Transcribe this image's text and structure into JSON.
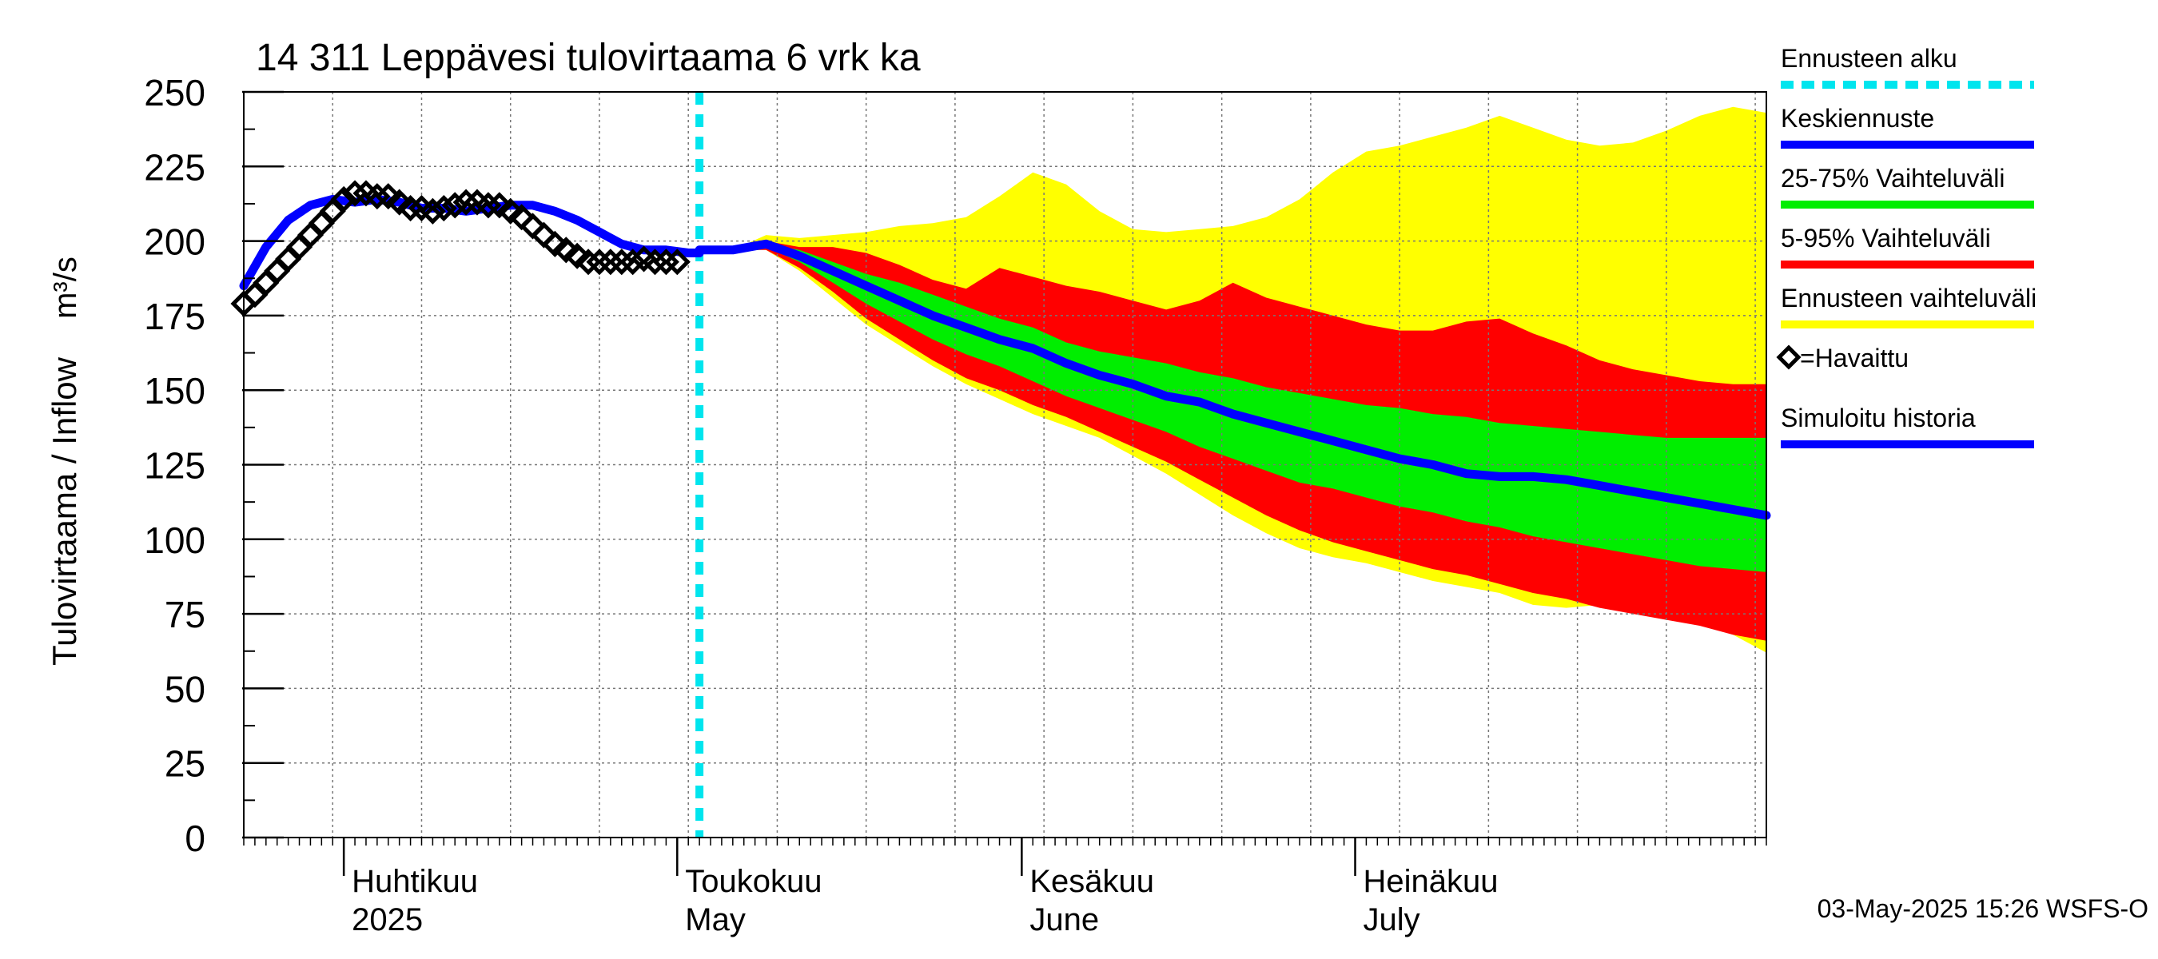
{
  "chart_data": {
    "type": "area",
    "title": "14 311 Leppävesi tulovirtaama 6 vrk ka",
    "ylabel": "Tulovirtaama / Inflow",
    "yunit": "m³/s",
    "ylim": [
      0,
      250
    ],
    "yticks": [
      0,
      25,
      50,
      75,
      100,
      125,
      150,
      175,
      200,
      225,
      250
    ],
    "xlim": [
      "2025-03-23",
      "2025-08-07"
    ],
    "grid": true,
    "legend_placement": "right",
    "month_labels": [
      {
        "date": "2025-04-01",
        "fi": "Huhtikuu",
        "en": "2025"
      },
      {
        "date": "2025-05-01",
        "fi": "Toukokuu",
        "en": "May"
      },
      {
        "date": "2025-06-01",
        "fi": "Kesäkuu",
        "en": "June"
      },
      {
        "date": "2025-07-01",
        "fi": "Heinäkuu",
        "en": "July"
      }
    ],
    "forecast_start": "2025-05-03",
    "legend": [
      {
        "key": "forecast_start",
        "label": "Ennusteen alku",
        "color": "#00e5ee",
        "style": "dashed"
      },
      {
        "key": "median",
        "label": "Keskiennuste",
        "color": "#0000ff",
        "style": "line"
      },
      {
        "key": "p25_75",
        "label": "25-75% Vaihteluväli",
        "color": "#00ee00",
        "style": "line"
      },
      {
        "key": "p5_95",
        "label": "5-95% Vaihteluväli",
        "color": "#ff0000",
        "style": "line"
      },
      {
        "key": "range",
        "label": "Ennusteen vaihteluväli",
        "color": "#ffff00",
        "style": "line"
      },
      {
        "key": "observed",
        "label": "=Havaittu",
        "color": "#000000",
        "style": "marker"
      },
      {
        "key": "simulated",
        "label": "Simuloitu historia",
        "color": "#0000ff",
        "style": "line"
      }
    ],
    "simulated_history": {
      "x": [
        "2025-03-23",
        "2025-03-25",
        "2025-03-27",
        "2025-03-29",
        "2025-03-31",
        "2025-04-02",
        "2025-04-04",
        "2025-04-06",
        "2025-04-08",
        "2025-04-10",
        "2025-04-12",
        "2025-04-14",
        "2025-04-16",
        "2025-04-18",
        "2025-04-20",
        "2025-04-22",
        "2025-04-24",
        "2025-04-26",
        "2025-04-28",
        "2025-04-30",
        "2025-05-02",
        "2025-05-03"
      ],
      "y": [
        185,
        198,
        207,
        212,
        214,
        213,
        214,
        213,
        211,
        211,
        210,
        211,
        212,
        212,
        210,
        207,
        203,
        199,
        197,
        197,
        196,
        196
      ]
    },
    "observed": {
      "x": [
        "2025-03-23",
        "2025-03-24",
        "2025-03-25",
        "2025-03-26",
        "2025-03-27",
        "2025-03-28",
        "2025-03-29",
        "2025-03-30",
        "2025-03-31",
        "2025-04-01",
        "2025-04-02",
        "2025-04-03",
        "2025-04-04",
        "2025-04-05",
        "2025-04-06",
        "2025-04-07",
        "2025-04-08",
        "2025-04-09",
        "2025-04-10",
        "2025-04-11",
        "2025-04-12",
        "2025-04-13",
        "2025-04-14",
        "2025-04-15",
        "2025-04-16",
        "2025-04-17",
        "2025-04-18",
        "2025-04-19",
        "2025-04-20",
        "2025-04-21",
        "2025-04-22",
        "2025-04-23",
        "2025-04-24",
        "2025-04-25",
        "2025-04-26",
        "2025-04-27",
        "2025-04-28",
        "2025-04-29",
        "2025-04-30",
        "2025-05-01"
      ],
      "y": [
        179,
        182,
        186,
        190,
        194,
        198,
        202,
        206,
        210,
        214,
        216,
        216,
        215,
        215,
        213,
        211,
        211,
        210,
        211,
        212,
        213,
        213,
        212,
        212,
        210,
        208,
        205,
        202,
        199,
        197,
        195,
        193,
        193,
        193,
        193,
        193,
        194,
        193,
        193,
        193
      ]
    },
    "forecast": {
      "x": [
        "2025-05-03",
        "2025-05-06",
        "2025-05-09",
        "2025-05-12",
        "2025-05-15",
        "2025-05-18",
        "2025-05-21",
        "2025-05-24",
        "2025-05-27",
        "2025-05-30",
        "2025-06-02",
        "2025-06-05",
        "2025-06-08",
        "2025-06-11",
        "2025-06-14",
        "2025-06-17",
        "2025-06-20",
        "2025-06-23",
        "2025-06-26",
        "2025-06-29",
        "2025-07-02",
        "2025-07-05",
        "2025-07-08",
        "2025-07-11",
        "2025-07-14",
        "2025-07-17",
        "2025-07-20",
        "2025-07-23",
        "2025-07-26",
        "2025-07-29",
        "2025-08-01",
        "2025-08-04",
        "2025-08-07"
      ],
      "median": [
        197,
        197,
        199,
        195,
        190,
        185,
        180,
        175,
        171,
        167,
        164,
        159,
        155,
        152,
        148,
        146,
        142,
        139,
        136,
        133,
        130,
        127,
        125,
        122,
        121,
        121,
        120,
        118,
        116,
        114,
        112,
        110,
        108
      ],
      "p25_low": [
        197,
        197,
        198,
        193,
        186,
        179,
        173,
        167,
        162,
        158,
        153,
        148,
        144,
        140,
        136,
        131,
        127,
        123,
        119,
        117,
        114,
        111,
        109,
        106,
        104,
        101,
        99,
        97,
        95,
        93,
        91,
        90,
        89
      ],
      "p25_high": [
        197,
        197,
        199,
        197,
        193,
        189,
        186,
        182,
        178,
        174,
        171,
        166,
        163,
        161,
        159,
        156,
        154,
        151,
        149,
        147,
        145,
        144,
        142,
        141,
        139,
        138,
        137,
        136,
        135,
        134,
        134,
        134,
        134
      ],
      "p5_low": [
        197,
        197,
        197,
        191,
        183,
        174,
        167,
        160,
        154,
        150,
        145,
        141,
        136,
        131,
        126,
        120,
        114,
        108,
        103,
        99,
        96,
        93,
        90,
        88,
        85,
        82,
        80,
        77,
        75,
        73,
        71,
        68,
        66
      ],
      "p5_high": [
        197,
        197,
        200,
        198,
        198,
        196,
        192,
        187,
        184,
        191,
        188,
        185,
        183,
        180,
        177,
        180,
        186,
        181,
        178,
        175,
        172,
        170,
        170,
        173,
        174,
        169,
        165,
        160,
        157,
        155,
        153,
        152,
        152
      ],
      "range_low": [
        197,
        197,
        197,
        190,
        181,
        172,
        165,
        158,
        152,
        147,
        142,
        138,
        134,
        128,
        122,
        115,
        108,
        102,
        97,
        94,
        92,
        89,
        86,
        84,
        82,
        78,
        77,
        78,
        79,
        75,
        72,
        68,
        62
      ],
      "range_high": [
        197,
        197,
        202,
        201,
        202,
        203,
        205,
        206,
        208,
        215,
        223,
        219,
        210,
        204,
        203,
        204,
        205,
        208,
        214,
        223,
        230,
        232,
        235,
        238,
        242,
        238,
        234,
        232,
        233,
        237,
        242,
        245,
        243
      ]
    },
    "footer": "03-May-2025 15:26 WSFS-O"
  }
}
